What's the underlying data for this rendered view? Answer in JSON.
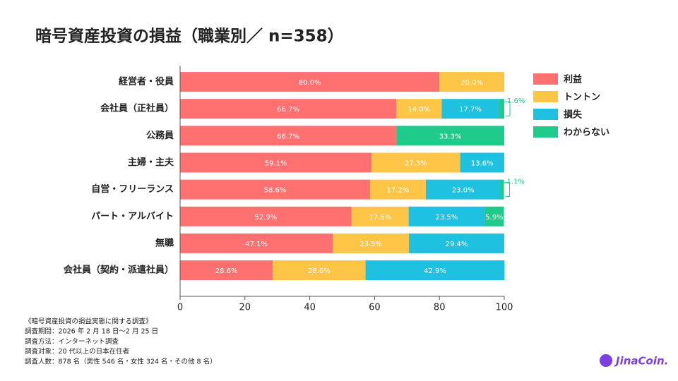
{
  "chart_data": {
    "type": "stacked-bar-horizontal",
    "title": "暗号資産投資の損益（職業別／ n=358）",
    "categories": [
      "経営者・役員",
      "会社員（正社員）",
      "公務員",
      "主婦・主夫",
      "自営・フリーランス",
      "パート・アルバイト",
      "無職",
      "会社員（契約・派遣社員）"
    ],
    "series": [
      {
        "name": "利益",
        "color": "#ff7171",
        "values": [
          80.0,
          66.7,
          66.7,
          59.1,
          58.6,
          52.9,
          47.1,
          28.6
        ],
        "value_labels": [
          "80.0%",
          "66.7%",
          "66.7%",
          "59.1%",
          "58.6%",
          "52.9%",
          "47.1%",
          "28.6%"
        ]
      },
      {
        "name": "トントン",
        "color": "#ffc547",
        "values": [
          20.0,
          14.0,
          null,
          27.3,
          17.2,
          17.6,
          23.5,
          28.6
        ],
        "value_labels": [
          "20.0%",
          "14.0%",
          null,
          "27.3%",
          "17.2%",
          "17.6%",
          "23.5%",
          "28.6%"
        ]
      },
      {
        "name": "損失",
        "color": "#1fc1e1",
        "values": [
          null,
          17.7,
          null,
          13.6,
          23.0,
          23.5,
          29.4,
          42.9
        ],
        "value_labels": [
          null,
          "17.7%",
          null,
          "13.6%",
          "23.0%",
          "23.5%",
          "29.4%",
          "42.9%"
        ]
      },
      {
        "name": "わからない",
        "color": "#1ecb8b",
        "values": [
          null,
          1.6,
          33.3,
          null,
          1.1,
          5.9,
          null,
          null
        ],
        "value_labels": [
          null,
          "1.6%",
          "33.3%",
          null,
          "1.1%",
          "5.9%",
          null,
          null
        ]
      }
    ],
    "xlim": [
      0,
      100
    ],
    "xticks": [
      0,
      20,
      40,
      60,
      80,
      100
    ],
    "legend": "right",
    "notes": [
      "《暗号資産投資の損益実態に関する調査》",
      "調査期間：2026 年 2 月 18 日〜2 月 25 日",
      "調査方法：インターネット調査",
      "調査対象：20 代以上の日本在住者",
      "調査人数：878 名（男性 546 名・女性 324 名・その他 8 名）"
    ],
    "logo": "JinaCoin."
  }
}
